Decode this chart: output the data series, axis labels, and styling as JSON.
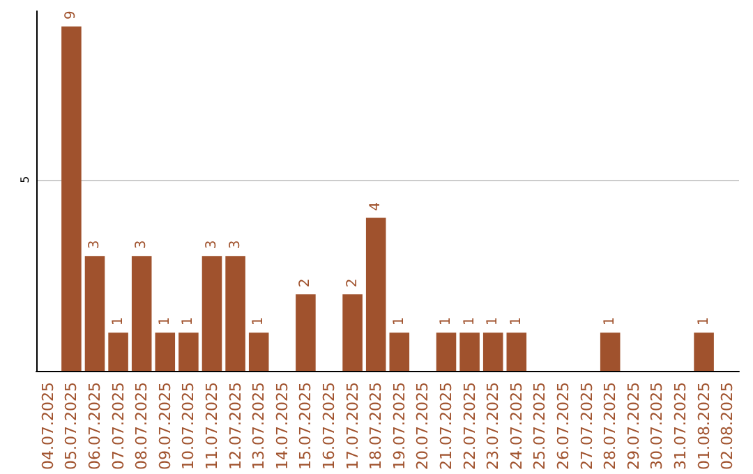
{
  "chart_data": {
    "type": "bar",
    "categories": [
      "04.07.2025",
      "05.07.2025",
      "06.07.2025",
      "07.07.2025",
      "08.07.2025",
      "09.07.2025",
      "10.07.2025",
      "11.07.2025",
      "12.07.2025",
      "13.07.2025",
      "14.07.2025",
      "15.07.2025",
      "16.07.2025",
      "17.07.2025",
      "18.07.2025",
      "19.07.2025",
      "20.07.2025",
      "21.07.2025",
      "22.07.2025",
      "23.07.2025",
      "24.07.2025",
      "25.07.2025",
      "26.07.2025",
      "27.07.2025",
      "28.07.2025",
      "29.07.2025",
      "30.07.2025",
      "31.07.2025",
      "01.08.2025",
      "02.08.2025"
    ],
    "values": [
      null,
      9,
      3,
      1,
      3,
      1,
      1,
      3,
      3,
      1,
      null,
      2,
      null,
      2,
      4,
      1,
      null,
      1,
      1,
      1,
      1,
      null,
      null,
      null,
      1,
      null,
      null,
      null,
      1,
      null
    ],
    "color": "#a0522d",
    "ylim": [
      0,
      9.4
    ],
    "yticks": [
      5
    ],
    "grid": "y",
    "data_labels": true
  }
}
